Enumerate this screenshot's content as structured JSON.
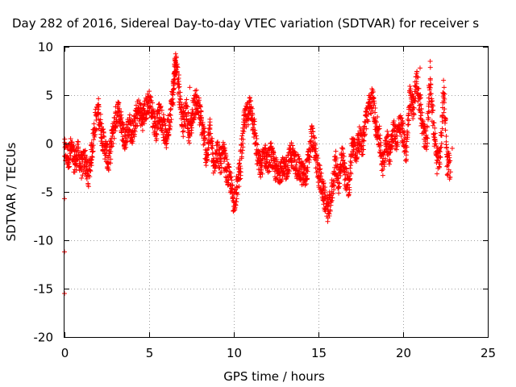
{
  "chart_data": {
    "type": "scatter",
    "title": "Day 282 of 2016, Sidereal Day-to-day VTEC variation (SDTVAR) for receiver s",
    "xlabel": "GPS time / hours",
    "ylabel": "SDTVAR / TECUs",
    "xlim": [
      0,
      25
    ],
    "ylim": [
      -20,
      10
    ],
    "xticks": [
      0,
      5,
      10,
      15,
      20,
      25
    ],
    "yticks": [
      -20,
      -15,
      -10,
      -5,
      0,
      5,
      10
    ],
    "grid": true,
    "legend": "none",
    "series": [
      {
        "name": "SDTVAR",
        "color": "#ff0000",
        "marker": "+",
        "anchors": [
          [
            0.0,
            -0.8
          ],
          [
            0.2,
            -1.5
          ],
          [
            0.4,
            -0.5
          ],
          [
            0.6,
            -2.0
          ],
          [
            0.8,
            -1.0
          ],
          [
            1.0,
            -2.5
          ],
          [
            1.2,
            -1.5
          ],
          [
            1.4,
            -3.5
          ],
          [
            1.6,
            -1.0
          ],
          [
            1.8,
            2.0
          ],
          [
            2.0,
            3.5
          ],
          [
            2.2,
            1.0
          ],
          [
            2.4,
            -0.5
          ],
          [
            2.6,
            -2.0
          ],
          [
            2.8,
            0.5
          ],
          [
            3.0,
            2.5
          ],
          [
            3.2,
            3.5
          ],
          [
            3.4,
            1.5
          ],
          [
            3.6,
            0.5
          ],
          [
            3.8,
            2.0
          ],
          [
            4.0,
            1.0
          ],
          [
            4.2,
            2.5
          ],
          [
            4.4,
            3.5
          ],
          [
            4.6,
            2.5
          ],
          [
            4.8,
            3.5
          ],
          [
            5.0,
            4.5
          ],
          [
            5.2,
            3.0
          ],
          [
            5.4,
            1.5
          ],
          [
            5.6,
            3.5
          ],
          [
            5.8,
            2.0
          ],
          [
            6.0,
            0.5
          ],
          [
            6.2,
            2.5
          ],
          [
            6.4,
            5.0
          ],
          [
            6.5,
            7.5
          ],
          [
            6.6,
            8.5
          ],
          [
            6.8,
            5.0
          ],
          [
            7.0,
            2.0
          ],
          [
            7.2,
            3.5
          ],
          [
            7.4,
            1.0
          ],
          [
            7.6,
            3.5
          ],
          [
            7.8,
            4.5
          ],
          [
            8.0,
            3.0
          ],
          [
            8.2,
            1.0
          ],
          [
            8.4,
            -1.5
          ],
          [
            8.6,
            1.5
          ],
          [
            8.8,
            -2.5
          ],
          [
            9.0,
            -0.5
          ],
          [
            9.2,
            -2.0
          ],
          [
            9.4,
            -1.0
          ],
          [
            9.6,
            -3.0
          ],
          [
            9.8,
            -4.0
          ],
          [
            10.0,
            -6.0
          ],
          [
            10.2,
            -4.5
          ],
          [
            10.4,
            -2.0
          ],
          [
            10.6,
            2.0
          ],
          [
            10.8,
            3.0
          ],
          [
            11.0,
            4.0
          ],
          [
            11.2,
            1.5
          ],
          [
            11.4,
            -1.5
          ],
          [
            11.6,
            -2.5
          ],
          [
            11.8,
            -1.0
          ],
          [
            12.0,
            -2.0
          ],
          [
            12.2,
            -1.0
          ],
          [
            12.4,
            -2.5
          ],
          [
            12.6,
            -3.0
          ],
          [
            12.8,
            -2.5
          ],
          [
            13.0,
            -3.0
          ],
          [
            13.2,
            -2.0
          ],
          [
            13.4,
            -1.0
          ],
          [
            13.6,
            -2.0
          ],
          [
            13.8,
            -2.5
          ],
          [
            14.0,
            -3.0
          ],
          [
            14.2,
            -3.5
          ],
          [
            14.4,
            -2.0
          ],
          [
            14.6,
            1.0
          ],
          [
            14.8,
            -1.0
          ],
          [
            15.0,
            -3.0
          ],
          [
            15.2,
            -4.5
          ],
          [
            15.4,
            -6.0
          ],
          [
            15.6,
            -7.0
          ],
          [
            15.8,
            -5.0
          ],
          [
            16.0,
            -2.0
          ],
          [
            16.2,
            -4.0
          ],
          [
            16.4,
            -1.5
          ],
          [
            16.6,
            -3.5
          ],
          [
            16.8,
            -4.5
          ],
          [
            17.0,
            0.0
          ],
          [
            17.2,
            -1.0
          ],
          [
            17.4,
            0.5
          ],
          [
            17.6,
            0.0
          ],
          [
            17.8,
            2.5
          ],
          [
            18.0,
            4.0
          ],
          [
            18.2,
            4.5
          ],
          [
            18.4,
            2.0
          ],
          [
            18.6,
            0.5
          ],
          [
            18.8,
            -2.5
          ],
          [
            19.0,
            0.5
          ],
          [
            19.2,
            -1.0
          ],
          [
            19.4,
            1.5
          ],
          [
            19.6,
            0.5
          ],
          [
            19.8,
            2.0
          ],
          [
            20.0,
            1.0
          ],
          [
            20.2,
            -1.0
          ],
          [
            20.4,
            5.0
          ],
          [
            20.6,
            3.5
          ],
          [
            20.8,
            7.0
          ],
          [
            21.0,
            4.0
          ],
          [
            21.2,
            1.0
          ],
          [
            21.4,
            0.0
          ],
          [
            21.6,
            7.0
          ],
          [
            21.8,
            1.5
          ],
          [
            22.0,
            -2.0
          ],
          [
            22.2,
            -1.0
          ],
          [
            22.4,
            6.0
          ],
          [
            22.6,
            -2.0
          ],
          [
            22.8,
            -2.5
          ]
        ],
        "outliers": [
          [
            0.0,
            -5.7
          ],
          [
            0.0,
            -11.2
          ],
          [
            0.0,
            -15.5
          ],
          [
            6.6,
            9.0
          ],
          [
            7.4,
            5.8
          ],
          [
            10.0,
            -6.5
          ],
          [
            15.6,
            -7.2
          ],
          [
            21.6,
            8.5
          ],
          [
            21.0,
            7.8
          ],
          [
            22.4,
            4.4
          ],
          [
            22.4,
            3.2
          ],
          [
            22.9,
            -0.5
          ]
        ]
      }
    ]
  }
}
